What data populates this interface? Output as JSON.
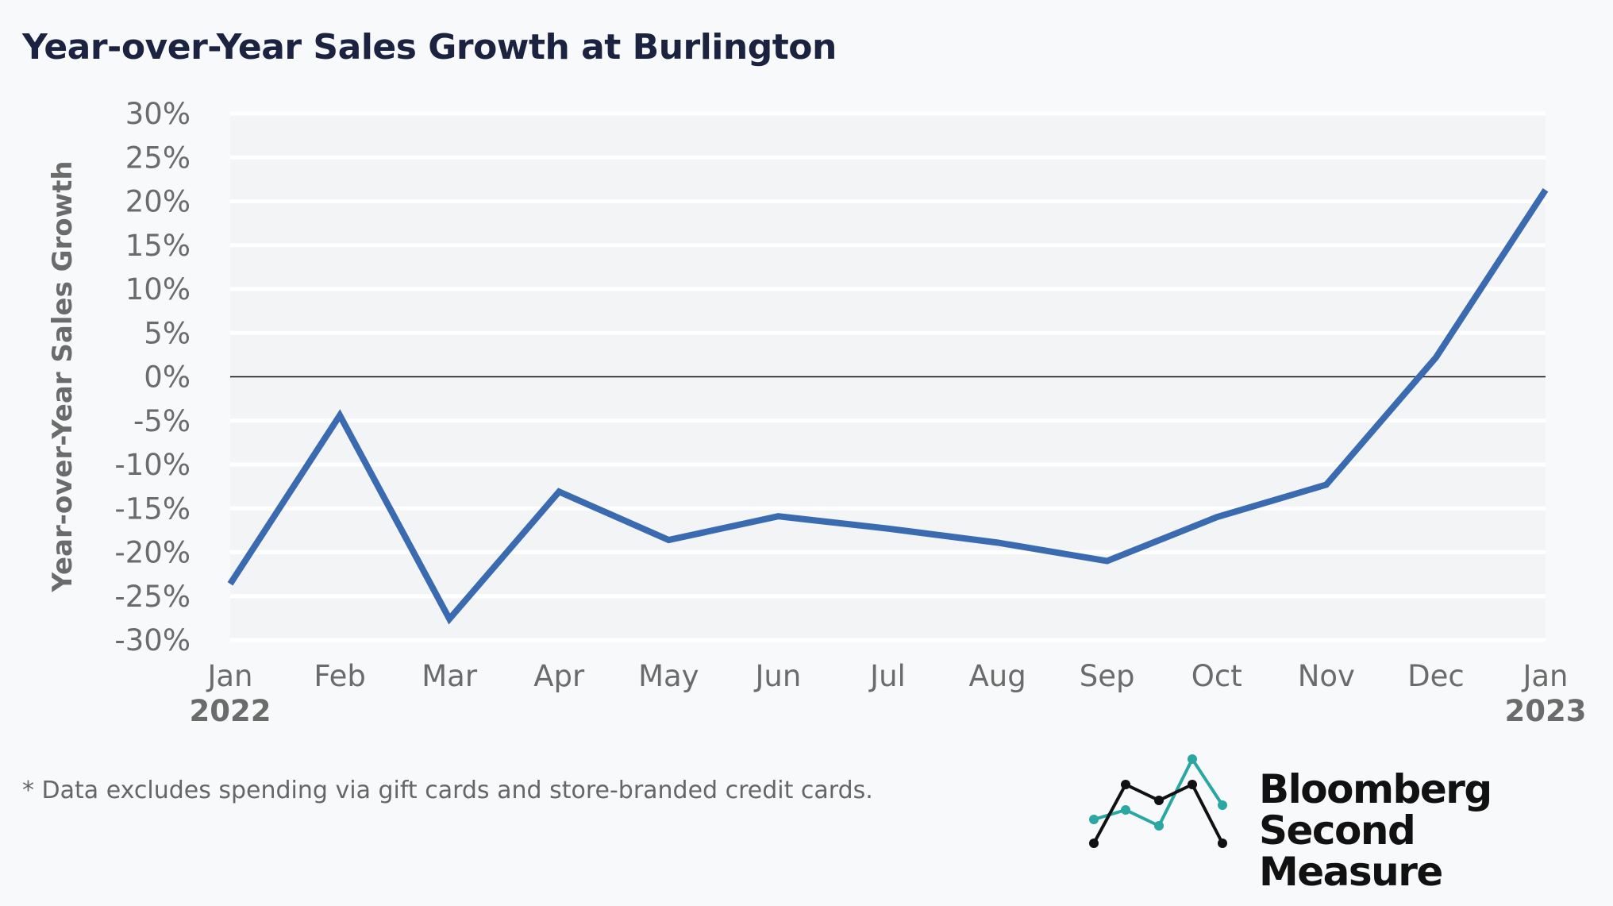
{
  "title": "Year-over-Year Sales Growth at Burlington",
  "footnote": "*  Data excludes spending via gift cards and store-branded credit cards.",
  "logo": {
    "line1": "Bloomberg",
    "line2": "Second Measure"
  },
  "colors": {
    "line": "#3a6ab0",
    "plot_bg": "#f3f4f6",
    "grid": "#ffffff",
    "title": "#1b2340",
    "ticks": "#6b6b6b",
    "logo_teal": "#2aa6a3"
  },
  "chart_data": {
    "type": "line",
    "title": "Year-over-Year Sales Growth at Burlington",
    "ylabel": "Year-over-Year Sales Growth",
    "xlabel": "",
    "x": [
      "Jan 2022",
      "Feb 2022",
      "Mar 2022",
      "Apr 2022",
      "May 2022",
      "Jun 2022",
      "Jul 2022",
      "Aug 2022",
      "Sep 2022",
      "Oct 2022",
      "Nov 2022",
      "Dec 2022",
      "Jan 2023"
    ],
    "x_tick_labels": [
      "Jan",
      "Feb",
      "Mar",
      "Apr",
      "May",
      "Jun",
      "Jul",
      "Aug",
      "Sep",
      "Oct",
      "Nov",
      "Dec",
      "Jan"
    ],
    "x_year_labels": {
      "first": "2022",
      "last": "2023"
    },
    "y_unit": "%",
    "values": [
      -23.6,
      -4.4,
      -27.6,
      -13.1,
      -18.6,
      -15.9,
      -17.3,
      -18.9,
      -21.0,
      -16.0,
      -12.3,
      2.2,
      21.3
    ],
    "ylim": [
      -30,
      30
    ],
    "y_ticks": [
      30,
      25,
      20,
      15,
      10,
      5,
      0,
      -5,
      -10,
      -15,
      -20,
      -25,
      -30
    ],
    "y_tick_labels": [
      "30%",
      "25%",
      "20%",
      "15%",
      "10%",
      "5%",
      "0%",
      "-5%",
      "-10%",
      "-15%",
      "-20%",
      "-25%",
      "-30%"
    ],
    "grid": true,
    "zero_line": true,
    "legend": "none"
  }
}
